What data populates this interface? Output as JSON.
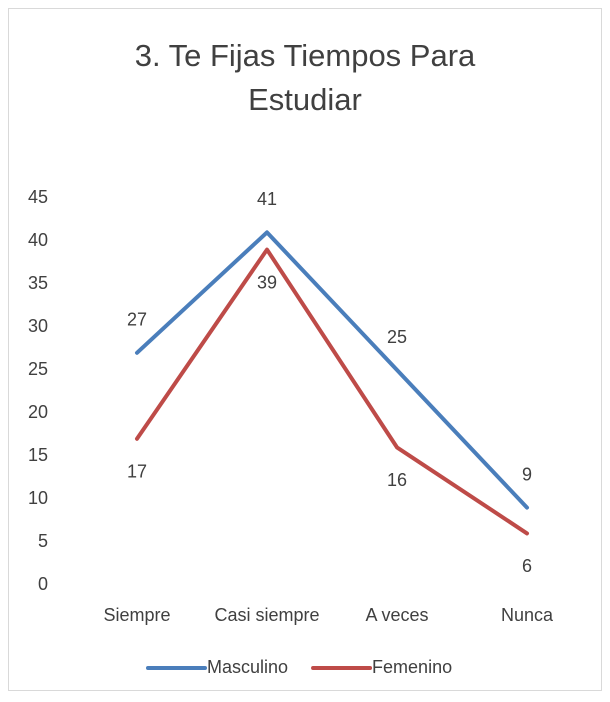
{
  "chart_data": {
    "type": "line",
    "title": "3. Te Fijas Tiempos Para Estudiar",
    "categories": [
      "Siempre",
      "Casi siempre",
      "A veces",
      "Nunca"
    ],
    "series": [
      {
        "name": "Masculino",
        "color": "#4a7ebb",
        "values": [
          27,
          41,
          25,
          9
        ]
      },
      {
        "name": "Femenino",
        "color": "#be4b48",
        "values": [
          17,
          39,
          16,
          6
        ]
      }
    ],
    "ylim": [
      0,
      45
    ],
    "yticks": [
      0,
      5,
      10,
      15,
      20,
      25,
      30,
      35,
      40,
      45
    ],
    "grid": false,
    "legend": "bottom"
  }
}
